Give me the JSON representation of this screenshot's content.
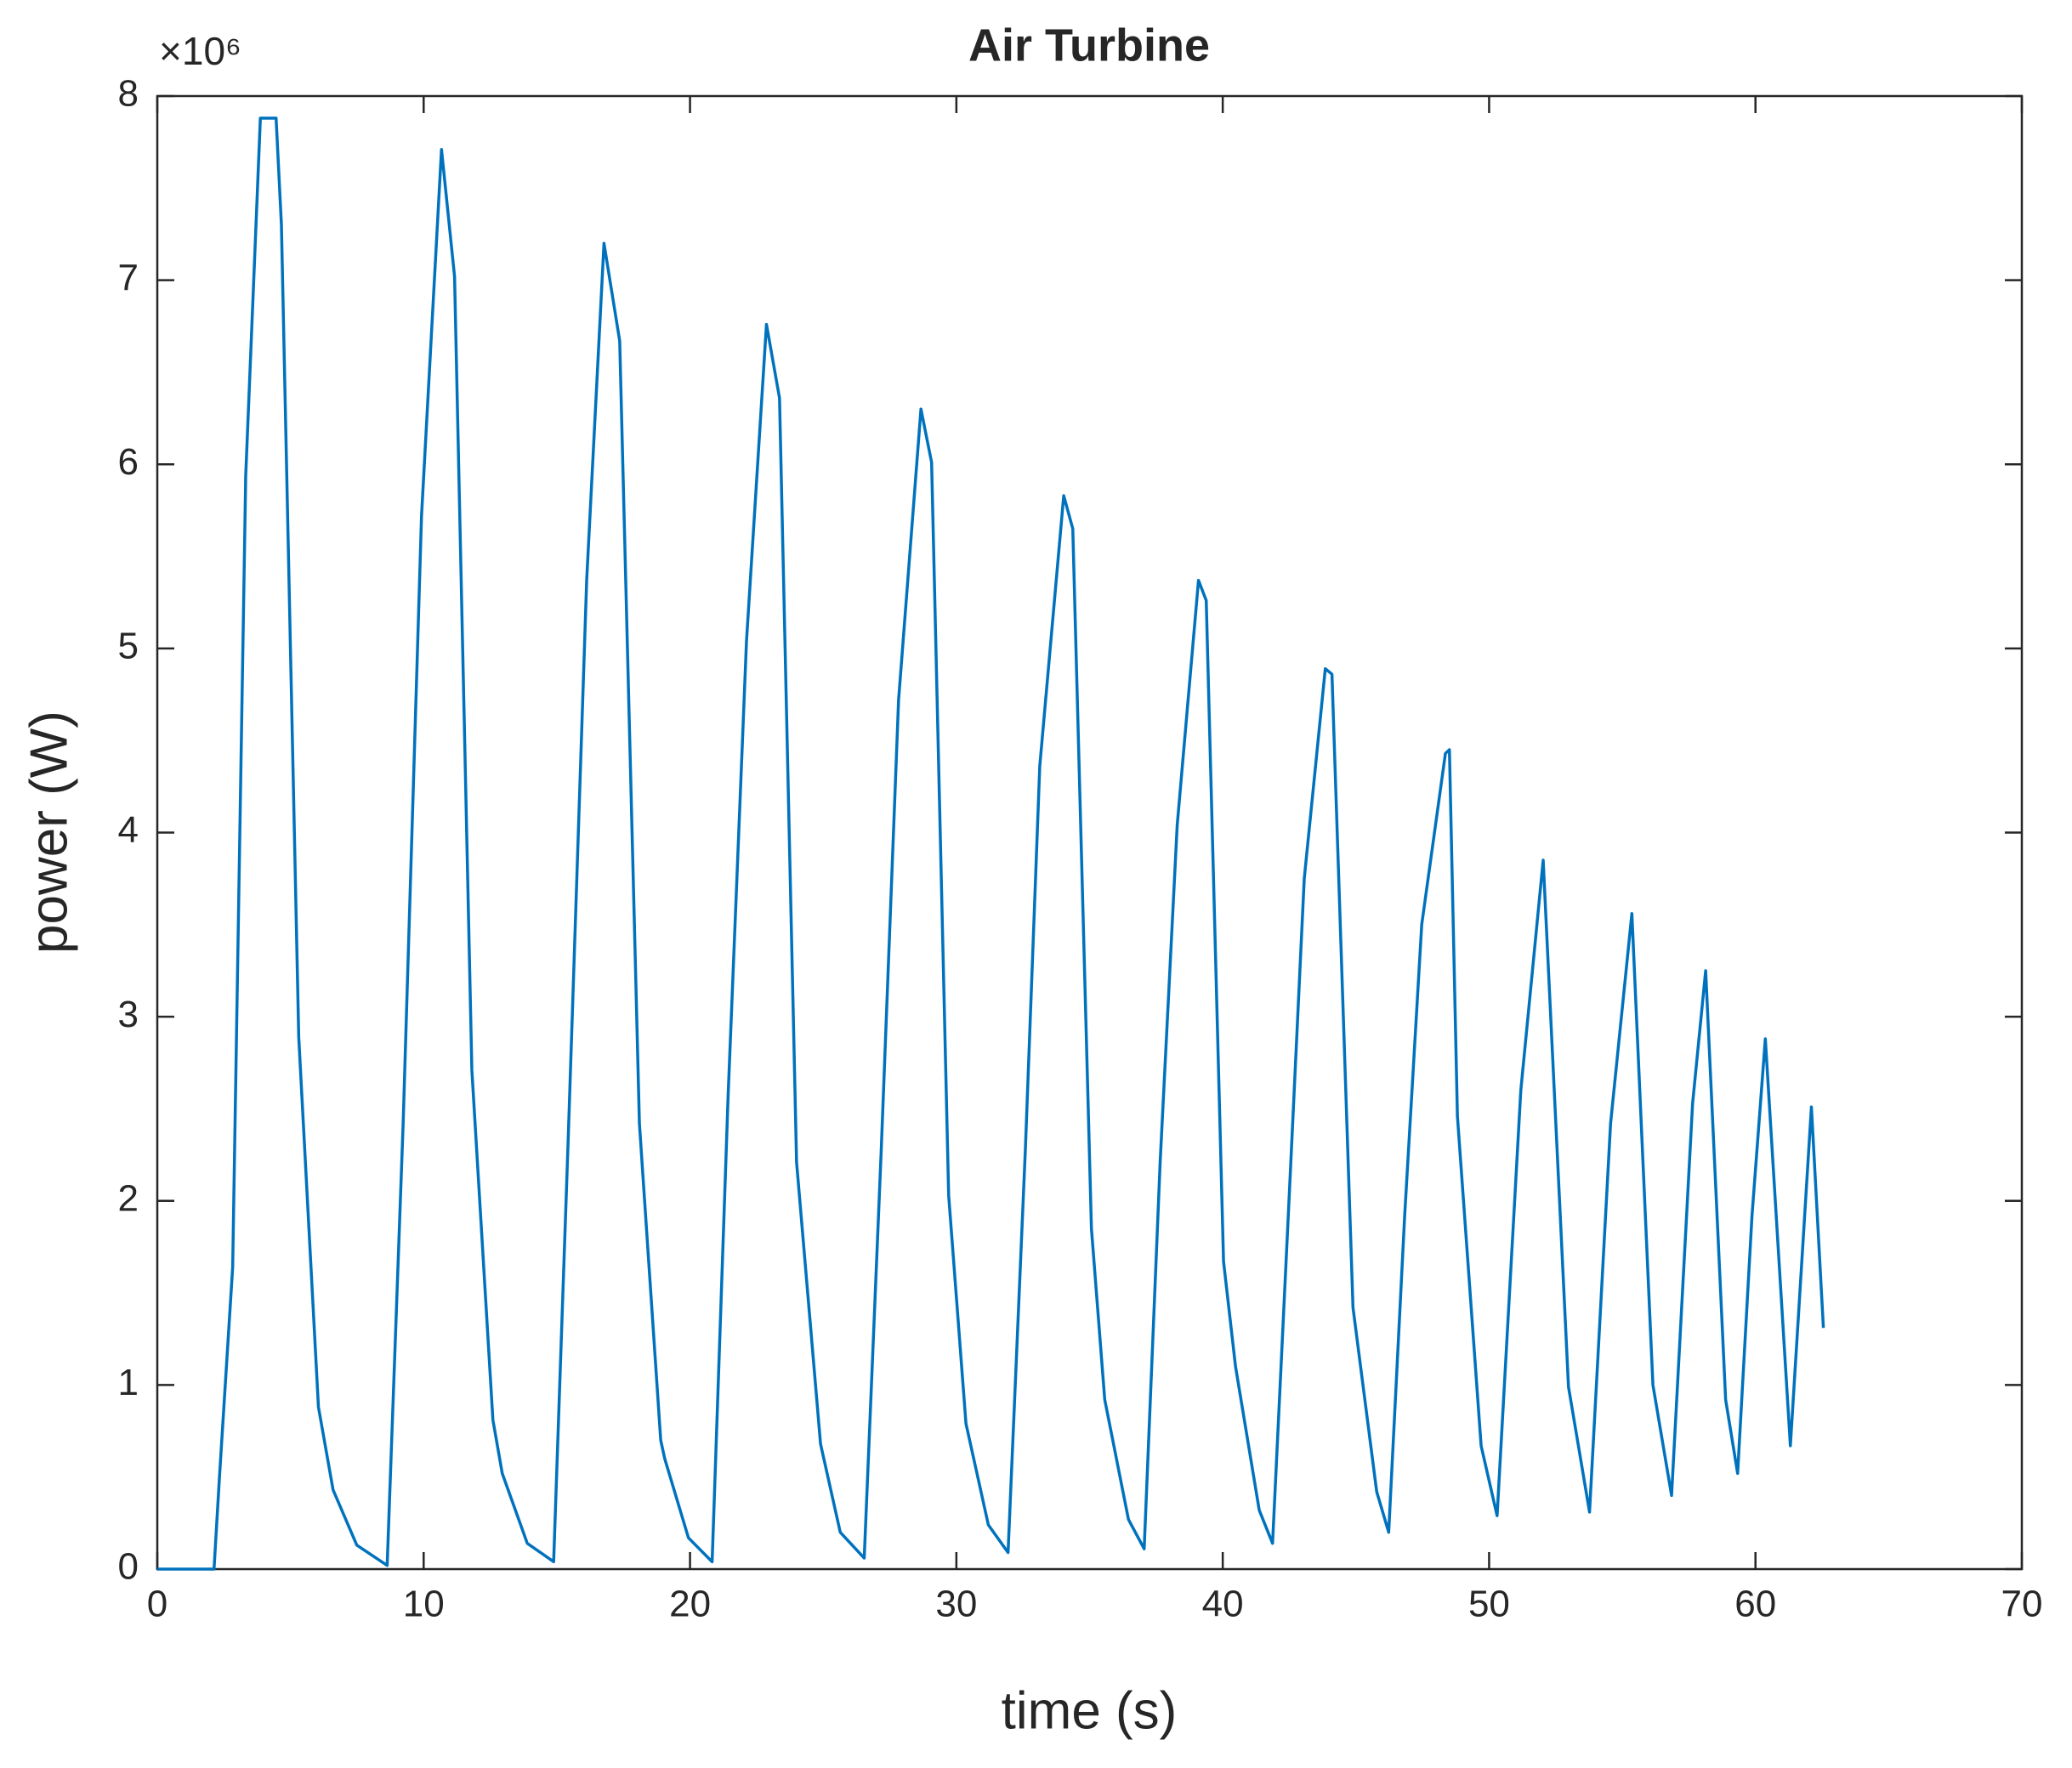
{
  "chart_data": {
    "type": "line",
    "title": "Air Turbine",
    "x_label": "time (s)",
    "y_label": "power (W)",
    "y_multiplier": "×10⁶",
    "series": [
      {
        "name": "power",
        "color": "#0072bd",
        "x": [
          0,
          2.13,
          2.33,
          2.83,
          3.32,
          3.87,
          4.46,
          4.66,
          5.31,
          6.05,
          6.6,
          7.49,
          8.63,
          9.23,
          9.92,
          10.67,
          11.16,
          11.81,
          12.6,
          12.95,
          13.89,
          14.88,
          15.43,
          16.12,
          16.77,
          17.36,
          18.1,
          18.9,
          19.05,
          19.94,
          20.83,
          21.43,
          22.12,
          22.87,
          23.36,
          24.0,
          24.9,
          25.64,
          26.54,
          27.18,
          27.83,
          28.67,
          29.07,
          29.71,
          30.36,
          31.2,
          31.94,
          32.59,
          33.13,
          34.03,
          34.37,
          35.07,
          35.57,
          36.46,
          37.05,
          37.65,
          38.29,
          39.09,
          39.38,
          40.03,
          40.48,
          41.37,
          41.87,
          42.51,
          43.06,
          43.85,
          44.1,
          44.89,
          45.78,
          46.23,
          46.83,
          47.47,
          48.36,
          48.51,
          48.81,
          49.7,
          50.3,
          51.19,
          52.03,
          52.98,
          53.77,
          54.56,
          55.36,
          56.15,
          56.85,
          57.64,
          58.13,
          58.88,
          59.33,
          59.87,
          60.37,
          61.31,
          62.1,
          62.55
        ],
        "values": [
          0,
          0,
          0.49,
          1.64,
          5.94,
          7.88,
          7.88,
          7.3,
          2.89,
          0.88,
          0.43,
          0.13,
          0.02,
          2.42,
          5.72,
          7.71,
          7.02,
          2.71,
          0.81,
          0.52,
          0.14,
          0.04,
          2.35,
          5.37,
          7.2,
          6.67,
          2.42,
          0.7,
          0.6,
          0.17,
          0.04,
          2.57,
          5.04,
          6.76,
          6.36,
          2.21,
          0.68,
          0.2,
          0.06,
          2.28,
          4.72,
          6.3,
          6.01,
          2.03,
          0.79,
          0.24,
          0.09,
          2.28,
          4.36,
          5.83,
          5.65,
          1.85,
          0.92,
          0.27,
          0.11,
          2.21,
          4.04,
          5.37,
          5.26,
          1.67,
          1.1,
          0.32,
          0.14,
          2.07,
          3.75,
          4.89,
          4.86,
          1.42,
          0.42,
          0.2,
          1.92,
          3.5,
          4.43,
          4.45,
          2.46,
          0.67,
          0.29,
          2.6,
          3.85,
          0.99,
          0.31,
          2.42,
          3.56,
          1.0,
          0.4,
          2.53,
          3.25,
          0.92,
          0.52,
          1.92,
          2.88,
          0.67,
          2.51,
          1.31
        ]
      }
    ],
    "xlim": [
      0,
      70
    ],
    "xticks": [
      0,
      10,
      20,
      30,
      40,
      50,
      60,
      70
    ],
    "ylim": [
      0,
      8
    ],
    "yticks": [
      0,
      1,
      2,
      3,
      4,
      5,
      6,
      7,
      8
    ],
    "grid": false
  }
}
